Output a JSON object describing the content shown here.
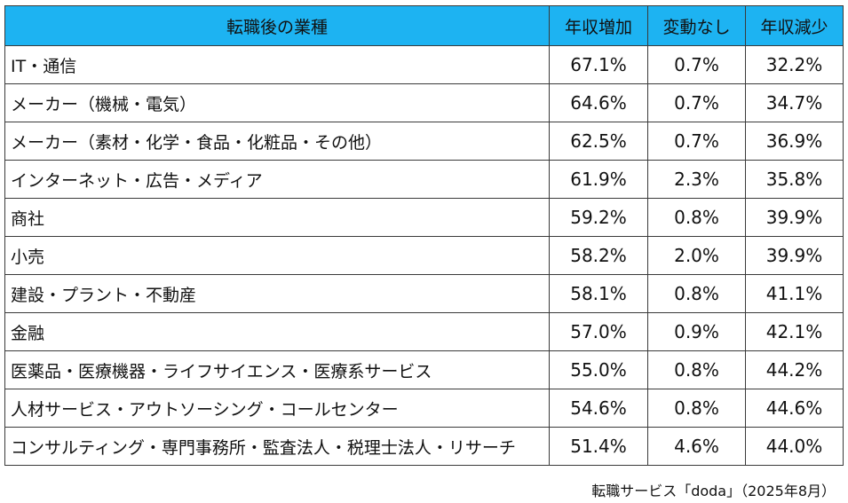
{
  "colors": {
    "header_background": "#1DB3F2",
    "border": "#3a3a3a",
    "text": "#111111"
  },
  "chart_data": {
    "type": "table",
    "columns": [
      "転職後の業種",
      "年収増加",
      "変動なし",
      "年収減少"
    ],
    "rows": [
      {
        "industry": "IT・通信",
        "increase": "67.1%",
        "unchanged": "0.7%",
        "decrease": "32.2%"
      },
      {
        "industry": "メーカー（機械・電気）",
        "increase": "64.6%",
        "unchanged": "0.7%",
        "decrease": "34.7%"
      },
      {
        "industry": "メーカー（素材・化学・食品・化粧品・その他）",
        "increase": "62.5%",
        "unchanged": "0.7%",
        "decrease": "36.9%"
      },
      {
        "industry": "インターネット・広告・メディア",
        "increase": "61.9%",
        "unchanged": "2.3%",
        "decrease": "35.8%"
      },
      {
        "industry": "商社",
        "increase": "59.2%",
        "unchanged": "0.8%",
        "decrease": "39.9%"
      },
      {
        "industry": "小売",
        "increase": "58.2%",
        "unchanged": "2.0%",
        "decrease": "39.9%"
      },
      {
        "industry": "建設・プラント・不動産",
        "increase": "58.1%",
        "unchanged": "0.8%",
        "decrease": "41.1%"
      },
      {
        "industry": "金融",
        "increase": "57.0%",
        "unchanged": "0.9%",
        "decrease": "42.1%"
      },
      {
        "industry": "医薬品・医療機器・ライフサイエンス・医療系サービス",
        "increase": "55.0%",
        "unchanged": "0.8%",
        "decrease": "44.2%"
      },
      {
        "industry": "人材サービス・アウトソーシング・コールセンター",
        "increase": "54.6%",
        "unchanged": "0.8%",
        "decrease": "44.6%"
      },
      {
        "industry": "コンサルティング・専門事務所・監査法人・税理士法人・リサーチ",
        "increase": "51.4%",
        "unchanged": "4.6%",
        "decrease": "44.0%"
      }
    ],
    "source": "転職サービス「doda」（2025年8月）"
  }
}
